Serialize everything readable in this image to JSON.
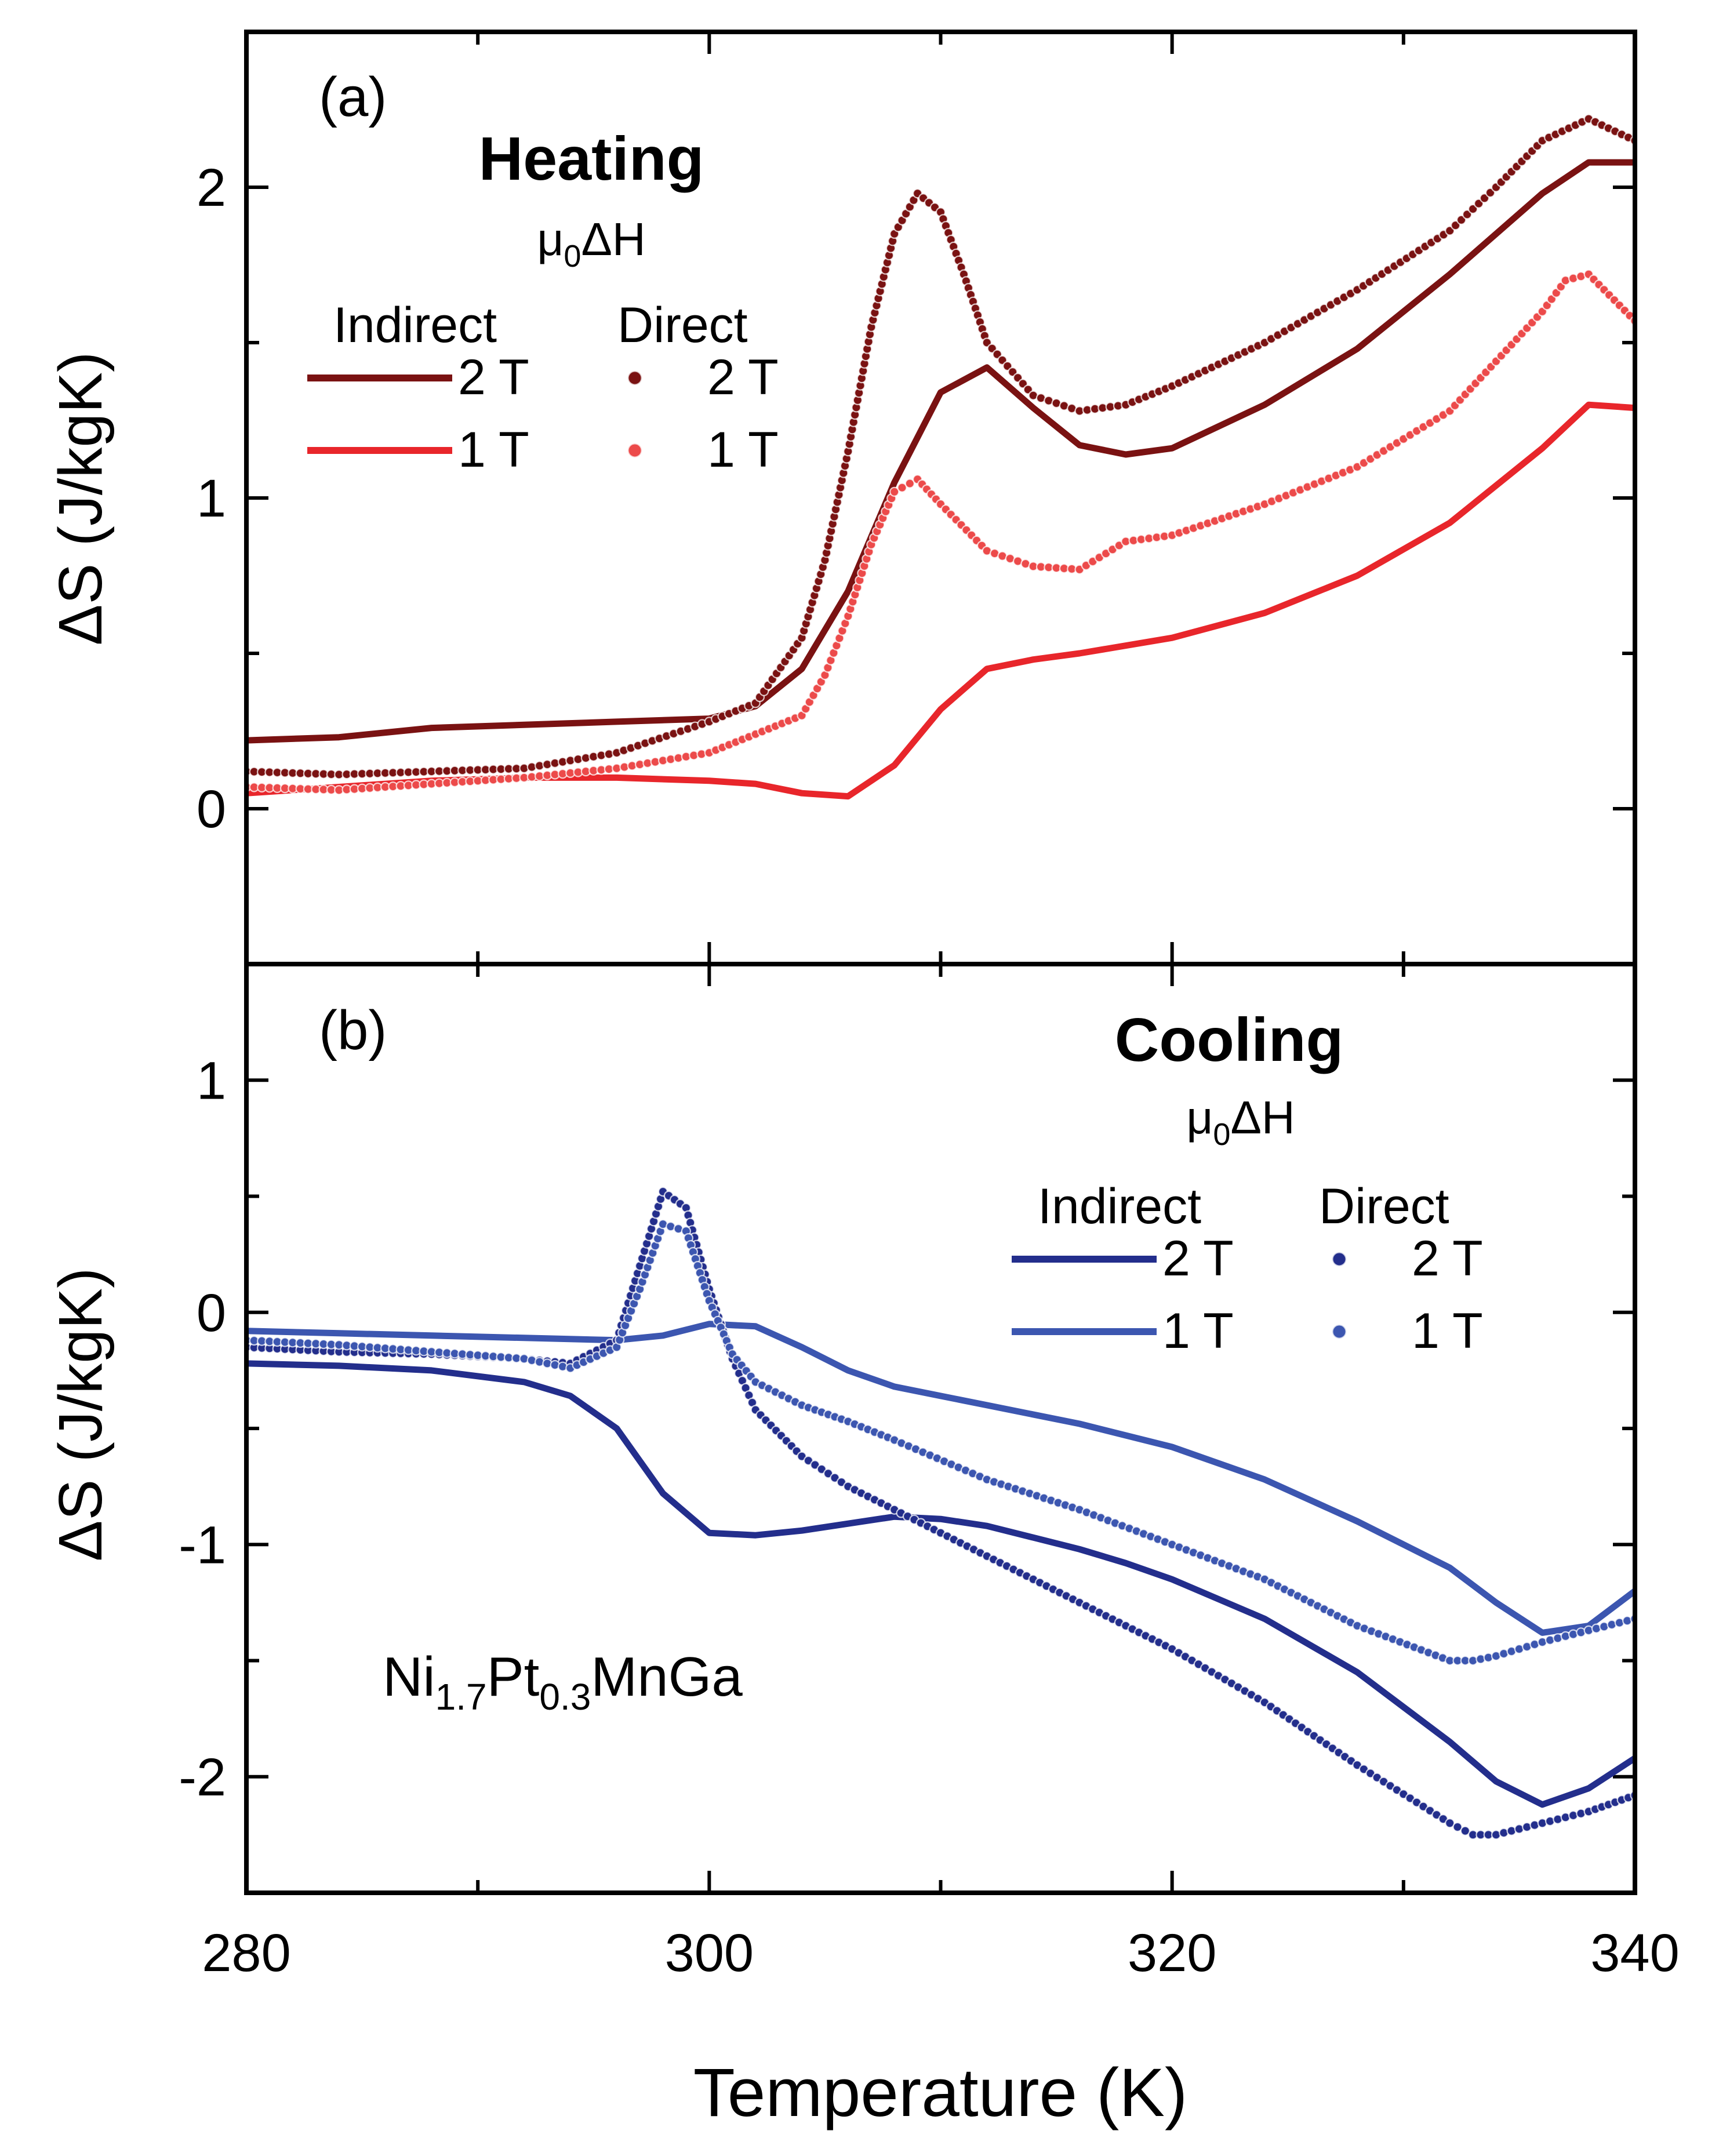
{
  "chart_data": [
    {
      "type": "line",
      "panel_label": "(a)",
      "title": "Heating",
      "field_label": "μ0ΔH",
      "field_label_main": "μ",
      "field_label_sub": "0",
      "field_label_tail": "ΔH",
      "ylabel": "ΔS (J/kgK)",
      "xlim": [
        280,
        340
      ],
      "ylim": [
        -0.5,
        2.5
      ],
      "yticks": [
        0,
        1,
        2
      ],
      "ytick_labels": [
        "0",
        "1",
        "2"
      ],
      "legend": {
        "indirect_header": "Indirect",
        "direct_header": "Direct",
        "entries": [
          {
            "method": "Indirect",
            "label": "2 T",
            "color": "#7a1212"
          },
          {
            "method": "Indirect",
            "label": "1 T",
            "color": "#e8262b"
          },
          {
            "method": "Direct",
            "label": "2 T",
            "color": "#7a1212"
          },
          {
            "method": "Direct",
            "label": "1 T",
            "color": "#ec4a4a"
          }
        ]
      },
      "series": [
        {
          "name": "Indirect 2 T",
          "style": "line",
          "color": "#7a1212",
          "x": [
            280,
            284,
            288,
            292,
            296,
            300,
            302,
            304,
            306,
            308,
            310,
            312,
            314,
            316,
            318,
            320,
            324,
            328,
            332,
            336,
            338,
            340
          ],
          "y": [
            0.22,
            0.23,
            0.26,
            0.27,
            0.28,
            0.29,
            0.33,
            0.45,
            0.7,
            1.05,
            1.34,
            1.42,
            1.29,
            1.17,
            1.14,
            1.16,
            1.3,
            1.48,
            1.72,
            1.98,
            2.08,
            2.08
          ]
        },
        {
          "name": "Indirect 1 T",
          "style": "line",
          "color": "#e8262b",
          "x": [
            280,
            284,
            288,
            292,
            296,
            300,
            302,
            304,
            306,
            308,
            310,
            312,
            314,
            316,
            320,
            324,
            328,
            332,
            336,
            338,
            340
          ],
          "y": [
            0.05,
            0.07,
            0.09,
            0.1,
            0.1,
            0.09,
            0.08,
            0.05,
            0.04,
            0.14,
            0.32,
            0.45,
            0.48,
            0.5,
            0.55,
            0.63,
            0.75,
            0.92,
            1.16,
            1.3,
            1.29
          ]
        },
        {
          "name": "Direct 2 T",
          "style": "markers",
          "color": "#7a1212",
          "x": [
            280,
            284,
            288,
            292,
            296,
            300,
            302,
            304,
            305,
            306,
            307,
            308,
            309,
            310,
            311,
            312,
            314,
            316,
            318,
            320,
            324,
            328,
            332,
            334,
            336,
            338,
            340
          ],
          "y": [
            0.12,
            0.11,
            0.12,
            0.13,
            0.18,
            0.28,
            0.34,
            0.55,
            0.8,
            1.15,
            1.55,
            1.85,
            1.98,
            1.92,
            1.72,
            1.5,
            1.33,
            1.28,
            1.3,
            1.36,
            1.5,
            1.67,
            1.86,
            2.0,
            2.15,
            2.22,
            2.15
          ]
        },
        {
          "name": "Direct 1 T",
          "style": "markers",
          "color": "#ec4a4a",
          "x": [
            280,
            284,
            288,
            292,
            296,
            300,
            302,
            304,
            305,
            306,
            307,
            308,
            309,
            310,
            312,
            314,
            316,
            318,
            320,
            324,
            328,
            332,
            334,
            336,
            337,
            338,
            340
          ],
          "y": [
            0.07,
            0.06,
            0.08,
            0.1,
            0.13,
            0.18,
            0.24,
            0.3,
            0.43,
            0.62,
            0.85,
            1.02,
            1.06,
            0.98,
            0.83,
            0.78,
            0.77,
            0.86,
            0.88,
            0.98,
            1.1,
            1.28,
            1.44,
            1.6,
            1.7,
            1.72,
            1.57
          ]
        }
      ]
    },
    {
      "type": "line",
      "panel_label": "(b)",
      "title": "Cooling",
      "field_label": "μ0ΔH",
      "field_label_main": "μ",
      "field_label_sub": "0",
      "field_label_tail": "ΔH",
      "ylabel": "ΔS (J/kgK)",
      "xlabel": "Temperature (K)",
      "xlim": [
        280,
        340
      ],
      "ylim": [
        -2.5,
        1.5
      ],
      "xticks": [
        280,
        300,
        320,
        340
      ],
      "xtick_labels": [
        "280",
        "300",
        "320",
        "340"
      ],
      "yticks": [
        1,
        0,
        -1,
        -2
      ],
      "ytick_labels": [
        "1",
        "0",
        "-1",
        "-2"
      ],
      "annotation": {
        "text": "Ni1.7Pt0.3MnGa",
        "parts": [
          "Ni",
          "1.7",
          "Pt",
          "0.3",
          "MnGa"
        ]
      },
      "legend": {
        "indirect_header": "Indirect",
        "direct_header": "Direct",
        "entries": [
          {
            "method": "Indirect",
            "label": "2 T",
            "color": "#232e8c"
          },
          {
            "method": "Indirect",
            "label": "1 T",
            "color": "#3c56b0"
          },
          {
            "method": "Direct",
            "label": "2 T",
            "color": "#232e8c"
          },
          {
            "method": "Direct",
            "label": "1 T",
            "color": "#3c56b0"
          }
        ]
      },
      "series": [
        {
          "name": "Indirect 2 T",
          "style": "line",
          "color": "#232e8c",
          "x": [
            280,
            284,
            288,
            292,
            294,
            296,
            298,
            300,
            302,
            304,
            306,
            308,
            310,
            312,
            314,
            316,
            318,
            320,
            324,
            328,
            332,
            334,
            336,
            338,
            340
          ],
          "y": [
            -0.22,
            -0.23,
            -0.25,
            -0.3,
            -0.36,
            -0.5,
            -0.78,
            -0.95,
            -0.96,
            -0.94,
            -0.91,
            -0.88,
            -0.89,
            -0.92,
            -0.97,
            -1.02,
            -1.08,
            -1.15,
            -1.32,
            -1.55,
            -1.85,
            -2.02,
            -2.12,
            -2.05,
            -1.92
          ]
        },
        {
          "name": "Indirect 1 T",
          "style": "line",
          "color": "#3c56b0",
          "x": [
            280,
            284,
            288,
            292,
            296,
            298,
            300,
            302,
            304,
            306,
            308,
            312,
            316,
            320,
            324,
            328,
            332,
            334,
            336,
            338,
            340
          ],
          "y": [
            -0.08,
            -0.09,
            -0.1,
            -0.11,
            -0.12,
            -0.1,
            -0.05,
            -0.06,
            -0.15,
            -0.25,
            -0.32,
            -0.4,
            -0.48,
            -0.58,
            -0.72,
            -0.9,
            -1.1,
            -1.25,
            -1.38,
            -1.35,
            -1.2
          ]
        },
        {
          "name": "Direct 2 T",
          "style": "markers",
          "color": "#232e8c",
          "x": [
            280,
            284,
            288,
            292,
            294,
            296,
            297,
            298,
            299,
            300,
            301,
            302,
            304,
            306,
            308,
            310,
            312,
            316,
            320,
            324,
            328,
            332,
            333,
            334,
            336,
            338,
            340
          ],
          "y": [
            -0.15,
            -0.17,
            -0.18,
            -0.2,
            -0.22,
            -0.12,
            0.2,
            0.52,
            0.45,
            0.1,
            -0.2,
            -0.42,
            -0.62,
            -0.75,
            -0.85,
            -0.95,
            -1.05,
            -1.25,
            -1.45,
            -1.68,
            -1.95,
            -2.2,
            -2.25,
            -2.25,
            -2.2,
            -2.15,
            -2.08
          ]
        },
        {
          "name": "Direct 1 T",
          "style": "markers",
          "color": "#3c56b0",
          "x": [
            280,
            284,
            288,
            292,
            294,
            296,
            297,
            298,
            299,
            300,
            301,
            302,
            304,
            306,
            308,
            312,
            316,
            320,
            324,
            328,
            332,
            333,
            334,
            336,
            338,
            340
          ],
          "y": [
            -0.12,
            -0.14,
            -0.17,
            -0.2,
            -0.24,
            -0.15,
            0.1,
            0.38,
            0.35,
            0.05,
            -0.18,
            -0.3,
            -0.4,
            -0.47,
            -0.55,
            -0.72,
            -0.85,
            -1.0,
            -1.15,
            -1.35,
            -1.5,
            -1.5,
            -1.48,
            -1.42,
            -1.37,
            -1.32
          ]
        }
      ]
    }
  ]
}
